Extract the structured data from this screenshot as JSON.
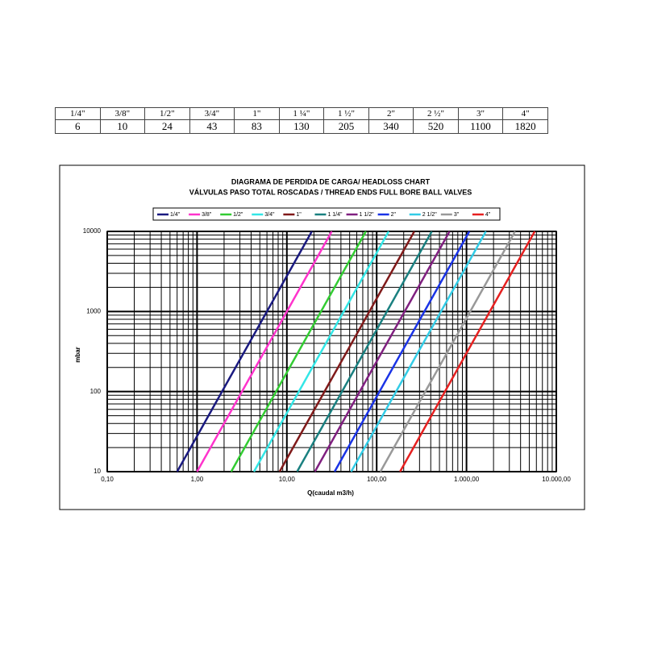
{
  "table": {
    "header": [
      "1/4\"",
      "3/8\"",
      "1/2\"",
      "3/4\"",
      "1\"",
      "1 ¼\"",
      "1 ½\"",
      "2\"",
      "2 ½\"",
      "3\"",
      "4\""
    ],
    "rows": [
      [
        "6",
        "10",
        "24",
        "43",
        "83",
        "130",
        "205",
        "340",
        "520",
        "1100",
        "1820"
      ]
    ]
  },
  "chart_data": {
    "type": "line",
    "title": "DIAGRAMA DE PERDIDA DE CARGA/ HEADLOSS CHART",
    "subtitle": "VÁLVULAS PASO TOTAL ROSCADAS / THREAD ENDS FULL BORE BALL VALVES",
    "x_label": "Q(caudal m3/h)",
    "y_label": "mbar",
    "log_x": true,
    "log_y": true,
    "grid": true,
    "xlim": [
      0.1,
      10000
    ],
    "ylim": [
      10,
      10000
    ],
    "xticks": [
      {
        "value": 0.1,
        "label": "0,10"
      },
      {
        "value": 1,
        "label": "1,00"
      },
      {
        "value": 10,
        "label": "10,00"
      },
      {
        "value": 100,
        "label": "100,00"
      },
      {
        "value": 1000,
        "label": "1.000,00"
      },
      {
        "value": 10000,
        "label": "10.000,00"
      }
    ],
    "yticks": [
      10,
      100,
      1000,
      10000
    ],
    "series": [
      {
        "name": "1/4\"",
        "color": "#1a1a80",
        "x": [
          0.6,
          18.97
        ],
        "values": [
          10,
          10000
        ]
      },
      {
        "name": "3/8\"",
        "color": "#ff33cc",
        "x": [
          1.0,
          31.62
        ],
        "values": [
          10,
          10000
        ]
      },
      {
        "name": "1/2\"",
        "color": "#33cc33",
        "x": [
          2.4,
          75.89
        ],
        "values": [
          10,
          10000
        ]
      },
      {
        "name": "3/4\"",
        "color": "#33e6e6",
        "x": [
          4.3,
          135.97
        ],
        "values": [
          10,
          10000
        ]
      },
      {
        "name": "1\"",
        "color": "#801a1a",
        "x": [
          8.3,
          262.47
        ],
        "values": [
          10,
          10000
        ]
      },
      {
        "name": "1 1/4\"",
        "color": "#1a8080",
        "x": [
          13,
          411.1
        ],
        "values": [
          10,
          10000
        ]
      },
      {
        "name": "1 1/2\"",
        "color": "#802080",
        "x": [
          20.5,
          648.3
        ],
        "values": [
          10,
          10000
        ]
      },
      {
        "name": "2\"",
        "color": "#1a33e6",
        "x": [
          34,
          1075.2
        ],
        "values": [
          10,
          10000
        ]
      },
      {
        "name": "2 1/2\"",
        "color": "#33cce6",
        "x": [
          52,
          1644.4
        ],
        "values": [
          10,
          10000
        ]
      },
      {
        "name": "3\"",
        "color": "#999999",
        "x": [
          110,
          3478.5
        ],
        "values": [
          10,
          10000
        ]
      },
      {
        "name": "4\"",
        "color": "#e62020",
        "x": [
          182,
          5755.4
        ],
        "values": [
          10,
          10000
        ]
      }
    ]
  }
}
